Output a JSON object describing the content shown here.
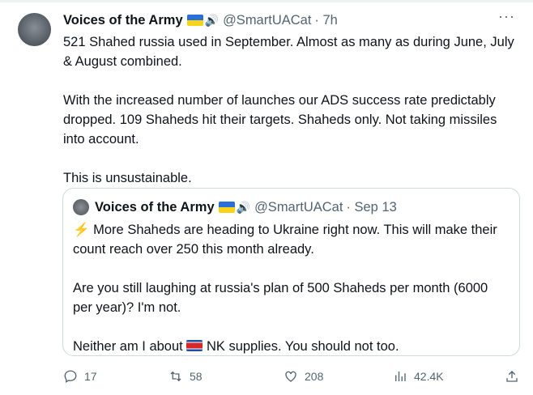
{
  "tweet": {
    "author_name": "Voices of the Army",
    "handle": "@SmartUACat",
    "time": "· 7h",
    "more_label": "···",
    "body_lines": [
      "521 Shahed russia used in September. Almost as many as during June, July",
      "& August combined.",
      "",
      "With the increased number of launches our ADS success rate predictably",
      "dropped. 109 Shaheds hit their targets. Shaheds only. Not taking missiles",
      "into account.",
      "",
      "This is unsustainable."
    ]
  },
  "quote": {
    "author_name": "Voices of the Army",
    "handle": "@SmartUACat",
    "time": "· Sep 13",
    "bolt": "⚡",
    "line1": "More Shaheds are heading to Ukraine right now. This will make their",
    "line2": "count reach over 250 this month already.",
    "line3": "Are you still laughing at russia's plan of 500 Shaheds per month (6000",
    "line4": "per year)? I'm not.",
    "line5_a": "Neither am I about",
    "line5_b": "NK supplies. You should not too."
  },
  "actions": {
    "replies": "17",
    "reposts": "58",
    "likes": "208",
    "views": "42.4K"
  }
}
